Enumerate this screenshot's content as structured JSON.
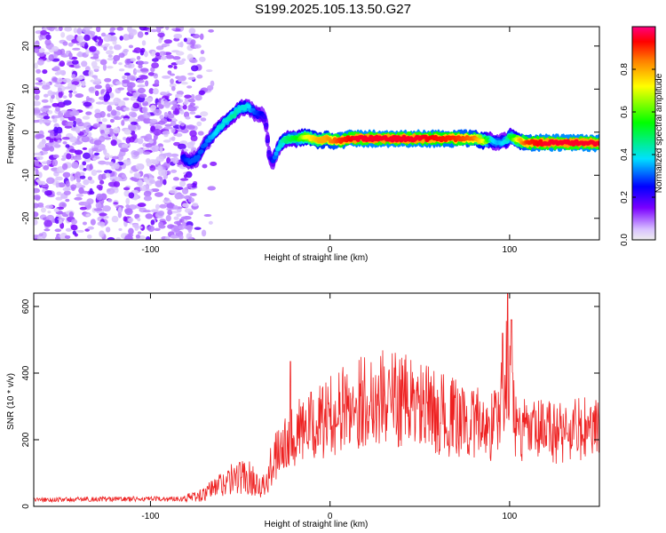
{
  "title": "S199.2025.105.13.50.G27",
  "chart_data": [
    {
      "type": "heatmap",
      "xlabel": "Height of straight line (km)",
      "ylabel": "Frequency (Hz)",
      "xlim": [
        -165,
        150
      ],
      "ylim": [
        -25,
        24.5
      ],
      "xticks": [
        -100,
        0,
        100
      ],
      "yticks": [
        -20,
        -10,
        0,
        10,
        20
      ],
      "colorbar": {
        "label": "Normalized spectral amplitude",
        "range": [
          0,
          1
        ],
        "ticks": [
          0.0,
          0.2,
          0.4,
          0.6,
          0.8
        ]
      },
      "noise_region_x": [
        -165,
        -75
      ],
      "ridge": {
        "x": [
          -82,
          -78,
          -74,
          -70,
          -66,
          -62,
          -58,
          -54,
          -50,
          -46,
          -42,
          -38,
          -36,
          -34,
          -32,
          -30,
          -28,
          -26,
          -22,
          -18,
          -14,
          -10,
          -6,
          -2,
          2,
          6,
          10,
          14,
          20,
          30,
          40,
          50,
          60,
          70,
          80,
          86,
          90,
          94,
          98,
          100,
          102,
          106,
          110,
          120,
          130,
          140,
          150
        ],
        "f": [
          -6,
          -7,
          -6,
          -3,
          -1,
          1,
          2.5,
          4,
          5.5,
          6,
          4.5,
          4,
          3,
          -5,
          -7,
          -5,
          -3,
          -2,
          -1.5,
          -1.5,
          -1,
          -1.5,
          -2,
          -1.5,
          -2,
          -2,
          -1.5,
          -1.5,
          -1.5,
          -1.5,
          -1.5,
          -1.5,
          -1.5,
          -1.5,
          -1.5,
          -2,
          -2,
          -2.5,
          -2,
          -1,
          -1.5,
          -2,
          -2.5,
          -2.5,
          -2.5,
          -2.5,
          -2.5
        ],
        "amp": [
          0.25,
          0.3,
          0.3,
          0.3,
          0.35,
          0.4,
          0.4,
          0.45,
          0.4,
          0.4,
          0.3,
          0.25,
          0.2,
          0.2,
          0.25,
          0.35,
          0.4,
          0.45,
          0.5,
          0.55,
          0.7,
          0.75,
          0.8,
          0.8,
          0.85,
          0.9,
          0.92,
          0.95,
          0.95,
          0.95,
          0.95,
          0.95,
          0.92,
          0.9,
          0.85,
          0.7,
          0.4,
          0.35,
          0.4,
          0.5,
          0.6,
          0.8,
          0.9,
          0.95,
          0.95,
          0.95,
          0.95
        ]
      }
    },
    {
      "type": "line",
      "xlabel": "Height of straight line (km)",
      "ylabel": "SNR (10 * v/v)",
      "xlim": [
        -165,
        150
      ],
      "ylim": [
        0,
        640
      ],
      "xticks": [
        -100,
        0,
        100
      ],
      "yticks": [
        0,
        200,
        400,
        600
      ],
      "series": [
        {
          "color": "#ee2222",
          "x": [
            -165,
            -150,
            -130,
            -110,
            -90,
            -80,
            -70,
            -65,
            -60,
            -55,
            -50,
            -45,
            -40,
            -35,
            -32,
            -30,
            -26,
            -22,
            -20,
            -10,
            0,
            10,
            20,
            30,
            40,
            50,
            60,
            70,
            80,
            90,
            94,
            97,
            99,
            101,
            104,
            110,
            120,
            130,
            140,
            150
          ],
          "y": [
            20,
            20,
            22,
            22,
            22,
            25,
            35,
            55,
            70,
            80,
            90,
            85,
            70,
            60,
            140,
            180,
            200,
            210,
            220,
            240,
            270,
            300,
            320,
            330,
            320,
            300,
            280,
            265,
            250,
            240,
            280,
            350,
            420,
            300,
            230,
            220,
            225,
            225,
            230,
            225
          ],
          "spikes": [
            {
              "x": -22,
              "y": 435
            },
            {
              "x": 99,
              "y": 640
            },
            {
              "x": 96,
              "y": 520
            },
            {
              "x": 101,
              "y": 560
            }
          ]
        }
      ]
    }
  ]
}
